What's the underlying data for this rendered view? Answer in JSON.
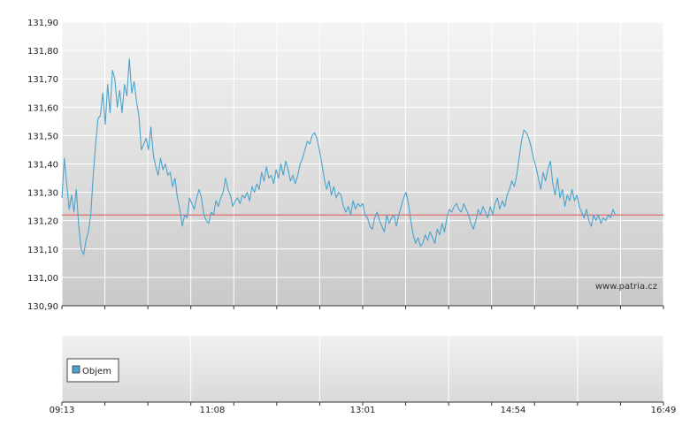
{
  "chart_data": {
    "type": "line",
    "title": "",
    "xlabel": "",
    "ylabel": "",
    "ylim": [
      130.9,
      131.9
    ],
    "y_tick_labels": [
      "131,90",
      "131,80",
      "131,70",
      "131,60",
      "131,50",
      "131,40",
      "131,30",
      "131,20",
      "131,10",
      "131,00",
      "130,90"
    ],
    "y_tick_values": [
      131.9,
      131.8,
      131.7,
      131.6,
      131.5,
      131.4,
      131.3,
      131.2,
      131.1,
      131.0,
      130.9
    ],
    "x_tick_labels": [
      "09:13",
      "11:08",
      "13:01",
      "14:54",
      "16:49"
    ],
    "reference_line": 131.22,
    "reference_color": "#e05050",
    "line_color": "#4aa3cc",
    "grid": true,
    "watermark": "www.patria.cz",
    "series": [
      {
        "points": [
          [
            0,
            131.28
          ],
          [
            0.004,
            131.42
          ],
          [
            0.008,
            131.33
          ],
          [
            0.012,
            131.24
          ],
          [
            0.016,
            131.29
          ],
          [
            0.02,
            131.23
          ],
          [
            0.024,
            131.31
          ],
          [
            0.028,
            131.18
          ],
          [
            0.032,
            131.1
          ],
          [
            0.036,
            131.08
          ],
          [
            0.04,
            131.13
          ],
          [
            0.044,
            131.16
          ],
          [
            0.048,
            131.22
          ],
          [
            0.052,
            131.36
          ],
          [
            0.056,
            131.47
          ],
          [
            0.06,
            131.56
          ],
          [
            0.064,
            131.57
          ],
          [
            0.068,
            131.65
          ],
          [
            0.072,
            131.54
          ],
          [
            0.076,
            131.68
          ],
          [
            0.08,
            131.58
          ],
          [
            0.084,
            131.73
          ],
          [
            0.088,
            131.7
          ],
          [
            0.092,
            131.6
          ],
          [
            0.096,
            131.66
          ],
          [
            0.1,
            131.58
          ],
          [
            0.104,
            131.68
          ],
          [
            0.108,
            131.64
          ],
          [
            0.112,
            131.77
          ],
          [
            0.116,
            131.65
          ],
          [
            0.12,
            131.69
          ],
          [
            0.124,
            131.62
          ],
          [
            0.128,
            131.57
          ],
          [
            0.132,
            131.45
          ],
          [
            0.136,
            131.47
          ],
          [
            0.14,
            131.49
          ],
          [
            0.144,
            131.45
          ],
          [
            0.148,
            131.53
          ],
          [
            0.152,
            131.43
          ],
          [
            0.156,
            131.39
          ],
          [
            0.16,
            131.36
          ],
          [
            0.164,
            131.42
          ],
          [
            0.168,
            131.38
          ],
          [
            0.172,
            131.4
          ],
          [
            0.176,
            131.36
          ],
          [
            0.18,
            131.37
          ],
          [
            0.184,
            131.32
          ],
          [
            0.188,
            131.35
          ],
          [
            0.192,
            131.28
          ],
          [
            0.196,
            131.24
          ],
          [
            0.2,
            131.18
          ],
          [
            0.204,
            131.22
          ],
          [
            0.208,
            131.21
          ],
          [
            0.212,
            131.28
          ],
          [
            0.216,
            131.26
          ],
          [
            0.22,
            131.24
          ],
          [
            0.224,
            131.28
          ],
          [
            0.228,
            131.31
          ],
          [
            0.232,
            131.28
          ],
          [
            0.236,
            131.22
          ],
          [
            0.24,
            131.2
          ],
          [
            0.244,
            131.19
          ],
          [
            0.248,
            131.23
          ],
          [
            0.252,
            131.22
          ],
          [
            0.256,
            131.27
          ],
          [
            0.26,
            131.25
          ],
          [
            0.264,
            131.28
          ],
          [
            0.268,
            131.3
          ],
          [
            0.272,
            131.35
          ],
          [
            0.276,
            131.31
          ],
          [
            0.28,
            131.29
          ],
          [
            0.284,
            131.25
          ],
          [
            0.288,
            131.27
          ],
          [
            0.292,
            131.28
          ],
          [
            0.296,
            131.26
          ],
          [
            0.3,
            131.29
          ],
          [
            0.304,
            131.28
          ],
          [
            0.308,
            131.3
          ],
          [
            0.312,
            131.27
          ],
          [
            0.316,
            131.32
          ],
          [
            0.32,
            131.3
          ],
          [
            0.324,
            131.33
          ],
          [
            0.328,
            131.31
          ],
          [
            0.332,
            131.37
          ],
          [
            0.336,
            131.34
          ],
          [
            0.34,
            131.39
          ],
          [
            0.344,
            131.35
          ],
          [
            0.348,
            131.36
          ],
          [
            0.352,
            131.33
          ],
          [
            0.356,
            131.38
          ],
          [
            0.36,
            131.35
          ],
          [
            0.364,
            131.4
          ],
          [
            0.368,
            131.36
          ],
          [
            0.372,
            131.41
          ],
          [
            0.376,
            131.38
          ],
          [
            0.38,
            131.34
          ],
          [
            0.384,
            131.36
          ],
          [
            0.388,
            131.33
          ],
          [
            0.392,
            131.36
          ],
          [
            0.396,
            131.4
          ],
          [
            0.4,
            131.42
          ],
          [
            0.404,
            131.45
          ],
          [
            0.408,
            131.48
          ],
          [
            0.412,
            131.47
          ],
          [
            0.416,
            131.5
          ],
          [
            0.42,
            131.51
          ],
          [
            0.424,
            131.49
          ],
          [
            0.428,
            131.45
          ],
          [
            0.432,
            131.4
          ],
          [
            0.436,
            131.35
          ],
          [
            0.44,
            131.31
          ],
          [
            0.444,
            131.34
          ],
          [
            0.448,
            131.29
          ],
          [
            0.452,
            131.32
          ],
          [
            0.456,
            131.28
          ],
          [
            0.46,
            131.3
          ],
          [
            0.464,
            131.29
          ],
          [
            0.468,
            131.25
          ],
          [
            0.472,
            131.23
          ],
          [
            0.476,
            131.25
          ],
          [
            0.48,
            131.22
          ],
          [
            0.484,
            131.27
          ],
          [
            0.488,
            131.24
          ],
          [
            0.492,
            131.26
          ],
          [
            0.496,
            131.25
          ],
          [
            0.5,
            131.26
          ],
          [
            0.504,
            131.22
          ],
          [
            0.508,
            131.21
          ],
          [
            0.512,
            131.18
          ],
          [
            0.516,
            131.17
          ],
          [
            0.52,
            131.21
          ],
          [
            0.524,
            131.23
          ],
          [
            0.528,
            131.2
          ],
          [
            0.532,
            131.18
          ],
          [
            0.536,
            131.16
          ],
          [
            0.54,
            131.22
          ],
          [
            0.544,
            131.19
          ],
          [
            0.548,
            131.21
          ],
          [
            0.552,
            131.22
          ],
          [
            0.556,
            131.18
          ],
          [
            0.56,
            131.22
          ],
          [
            0.564,
            131.25
          ],
          [
            0.568,
            131.28
          ],
          [
            0.572,
            131.3
          ],
          [
            0.576,
            131.26
          ],
          [
            0.58,
            131.2
          ],
          [
            0.584,
            131.15
          ],
          [
            0.588,
            131.12
          ],
          [
            0.592,
            131.14
          ],
          [
            0.596,
            131.11
          ],
          [
            0.6,
            131.12
          ],
          [
            0.604,
            131.15
          ],
          [
            0.608,
            131.13
          ],
          [
            0.612,
            131.16
          ],
          [
            0.616,
            131.14
          ],
          [
            0.62,
            131.12
          ],
          [
            0.624,
            131.17
          ],
          [
            0.628,
            131.15
          ],
          [
            0.632,
            131.19
          ],
          [
            0.636,
            131.16
          ],
          [
            0.64,
            131.21
          ],
          [
            0.644,
            131.24
          ],
          [
            0.648,
            131.23
          ],
          [
            0.652,
            131.25
          ],
          [
            0.656,
            131.26
          ],
          [
            0.66,
            131.24
          ],
          [
            0.664,
            131.23
          ],
          [
            0.668,
            131.26
          ],
          [
            0.672,
            131.24
          ],
          [
            0.676,
            131.22
          ],
          [
            0.68,
            131.19
          ],
          [
            0.684,
            131.17
          ],
          [
            0.688,
            131.2
          ],
          [
            0.692,
            131.24
          ],
          [
            0.696,
            131.22
          ],
          [
            0.7,
            131.25
          ],
          [
            0.704,
            131.23
          ],
          [
            0.708,
            131.21
          ],
          [
            0.712,
            131.25
          ],
          [
            0.716,
            131.22
          ],
          [
            0.72,
            131.26
          ],
          [
            0.724,
            131.28
          ],
          [
            0.728,
            131.24
          ],
          [
            0.732,
            131.27
          ],
          [
            0.736,
            131.25
          ],
          [
            0.74,
            131.29
          ],
          [
            0.744,
            131.31
          ],
          [
            0.748,
            131.34
          ],
          [
            0.752,
            131.32
          ],
          [
            0.756,
            131.36
          ],
          [
            0.76,
            131.42
          ],
          [
            0.764,
            131.48
          ],
          [
            0.768,
            131.52
          ],
          [
            0.772,
            131.51
          ],
          [
            0.776,
            131.49
          ],
          [
            0.78,
            131.46
          ],
          [
            0.784,
            131.42
          ],
          [
            0.788,
            131.39
          ],
          [
            0.792,
            131.35
          ],
          [
            0.796,
            131.31
          ],
          [
            0.8,
            131.37
          ],
          [
            0.804,
            131.34
          ],
          [
            0.808,
            131.38
          ],
          [
            0.812,
            131.41
          ],
          [
            0.816,
            131.33
          ],
          [
            0.82,
            131.29
          ],
          [
            0.824,
            131.35
          ],
          [
            0.828,
            131.28
          ],
          [
            0.832,
            131.31
          ],
          [
            0.836,
            131.25
          ],
          [
            0.84,
            131.29
          ],
          [
            0.844,
            131.27
          ],
          [
            0.848,
            131.31
          ],
          [
            0.852,
            131.27
          ],
          [
            0.856,
            131.29
          ],
          [
            0.86,
            131.25
          ],
          [
            0.864,
            131.23
          ],
          [
            0.868,
            131.21
          ],
          [
            0.872,
            131.24
          ],
          [
            0.876,
            131.2
          ],
          [
            0.88,
            131.18
          ],
          [
            0.884,
            131.22
          ],
          [
            0.888,
            131.2
          ],
          [
            0.892,
            131.22
          ],
          [
            0.896,
            131.19
          ],
          [
            0.9,
            131.21
          ],
          [
            0.904,
            131.2
          ],
          [
            0.908,
            131.22
          ],
          [
            0.912,
            131.21
          ],
          [
            0.916,
            131.24
          ],
          [
            0.92,
            131.22
          ]
        ]
      }
    ],
    "volume_panel": {
      "legend_label": "Objem",
      "legend_color": "#4aa3cc",
      "values": []
    }
  }
}
